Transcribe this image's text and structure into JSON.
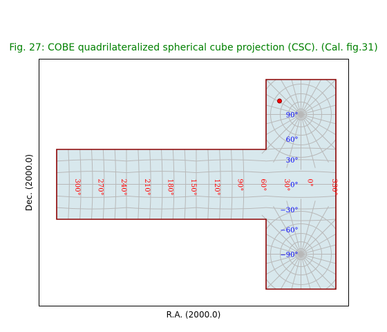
{
  "chart_data": {
    "type": "map-projection",
    "title": "Fig. 27: COBE quadrilateralized spherical cube projection (CSC). (Cal. fig.31)",
    "xlabel": "R.A. (2000.0)",
    "ylabel": "Dec. (2000.0)",
    "projection": "CSC",
    "ra_tick_labels": [
      {
        "ra": 300,
        "text": "300°"
      },
      {
        "ra": 270,
        "text": "270°"
      },
      {
        "ra": 240,
        "text": "240°"
      },
      {
        "ra": 210,
        "text": "210°"
      },
      {
        "ra": 180,
        "text": "180°"
      },
      {
        "ra": 150,
        "text": "150°"
      },
      {
        "ra": 120,
        "text": "120°"
      },
      {
        "ra": 90,
        "text": "90°"
      },
      {
        "ra": 60,
        "text": "60°"
      },
      {
        "ra": 30,
        "text": "30°"
      },
      {
        "ra": 0,
        "text": "0°"
      },
      {
        "ra": 330,
        "text": "330°"
      }
    ],
    "dec_tick_labels": [
      {
        "dec": 90,
        "text": "90°"
      },
      {
        "dec": 60,
        "text": "60°"
      },
      {
        "dec": 30,
        "text": "30°"
      },
      {
        "dec": 0,
        "text": "0°"
      },
      {
        "dec": -30,
        "text": "−30°"
      },
      {
        "dec": -60,
        "text": "−60°"
      },
      {
        "dec": -90,
        "text": "−90°"
      }
    ],
    "marker": {
      "ra": 0,
      "dec": 75
    },
    "colors": {
      "title": "#008000",
      "background_fill": "#d8e8ed",
      "border": "#8b0000",
      "grid": "#b8b8b8",
      "ra_labels": "#ff0000",
      "dec_labels": "#0000ff",
      "marker": "#ff0000"
    }
  }
}
